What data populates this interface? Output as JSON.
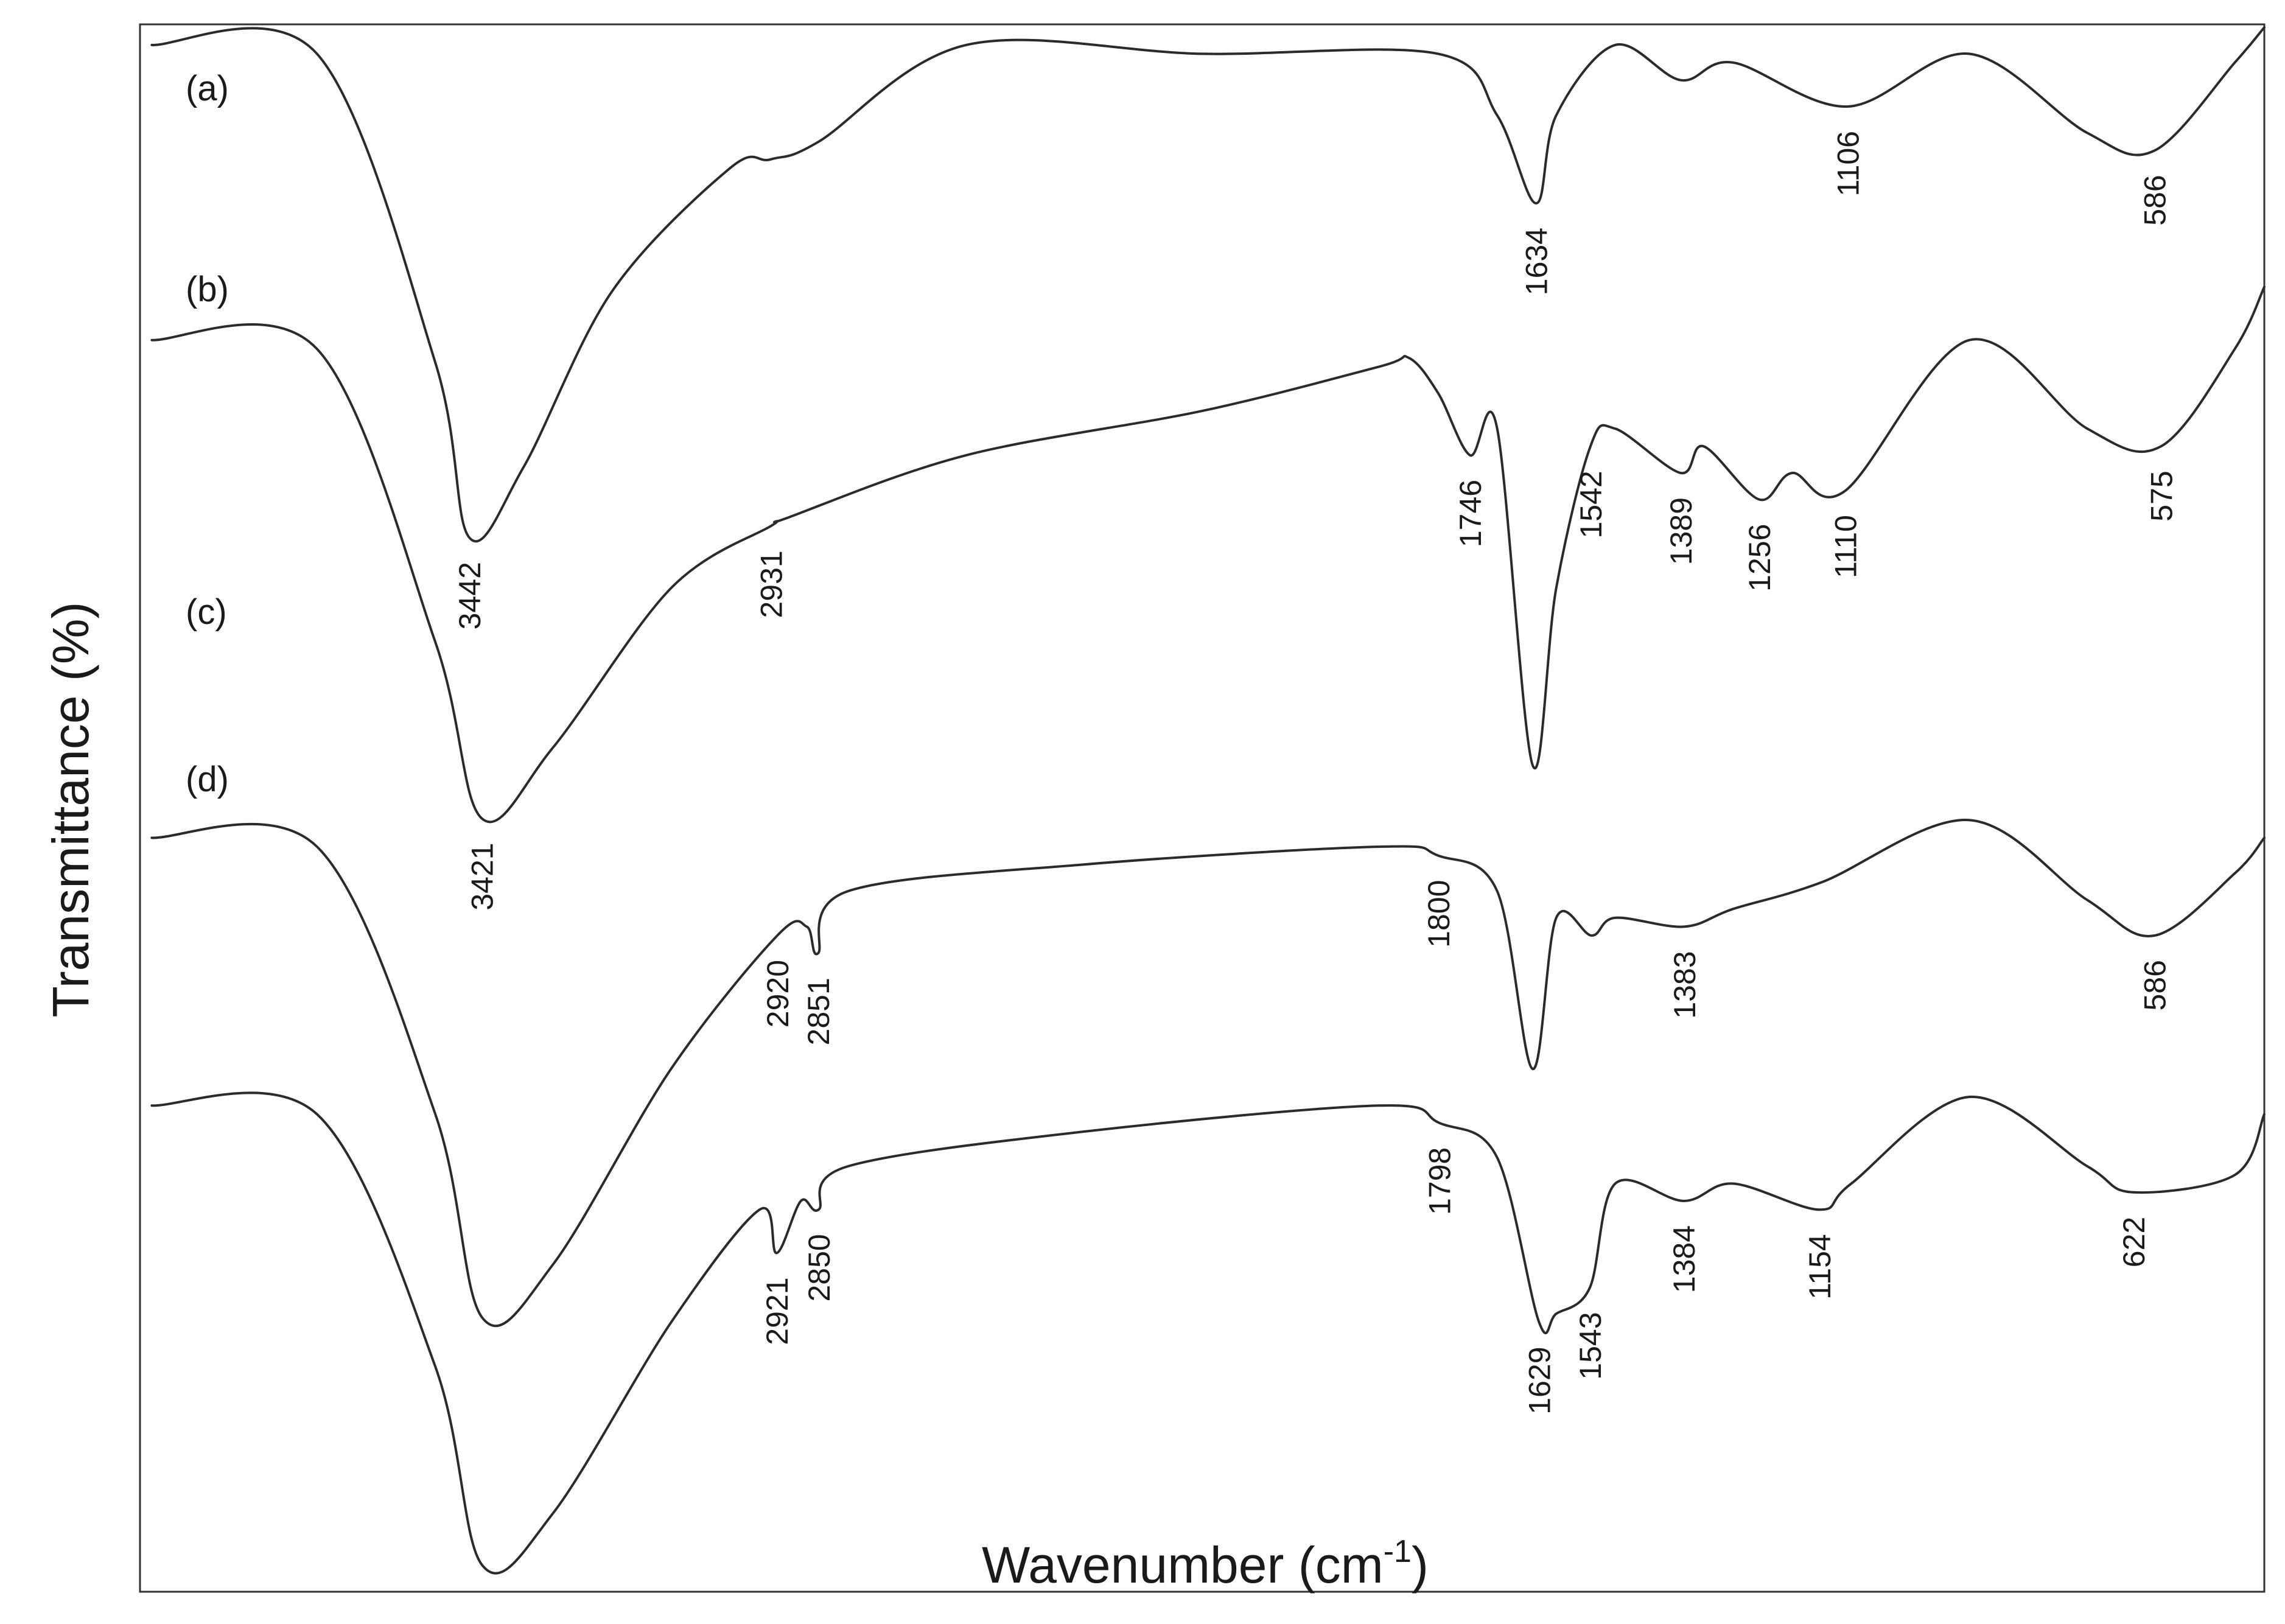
{
  "chart_data": {
    "type": "line",
    "xlabel": "Wavenumber (cm",
    "xlabel_superscript": "-1",
    "xlabel_suffix": ")",
    "ylabel": "Transmittance (%)",
    "x_direction": "descending",
    "xlim": [
      4000,
      400
    ],
    "ylim": [
      0,
      100
    ],
    "grid": false,
    "legend": "none",
    "series": [
      {
        "name": "(a)",
        "points": [
          [
            3980,
            98
          ],
          [
            3700,
            97
          ],
          [
            3500,
            62
          ],
          [
            3442,
            42
          ],
          [
            3350,
            50
          ],
          [
            3200,
            70
          ],
          [
            3000,
            84
          ],
          [
            2931,
            85
          ],
          [
            2850,
            87
          ],
          [
            2600,
            98
          ],
          [
            2200,
            97
          ],
          [
            1800,
            97
          ],
          [
            1700,
            90
          ],
          [
            1634,
            80
          ],
          [
            1600,
            90
          ],
          [
            1500,
            98
          ],
          [
            1389,
            94
          ],
          [
            1300,
            96
          ],
          [
            1106,
            91
          ],
          [
            900,
            97
          ],
          [
            700,
            88
          ],
          [
            586,
            86
          ],
          [
            450,
            96
          ],
          [
            400,
            100
          ]
        ]
      },
      {
        "name": "(b)",
        "points": [
          [
            3980,
            86
          ],
          [
            3700,
            85
          ],
          [
            3500,
            52
          ],
          [
            3421,
            32
          ],
          [
            3300,
            40
          ],
          [
            3100,
            58
          ],
          [
            2931,
            65
          ],
          [
            2900,
            66
          ],
          [
            2600,
            73
          ],
          [
            2200,
            78
          ],
          [
            1900,
            83
          ],
          [
            1850,
            84
          ],
          [
            1800,
            80
          ],
          [
            1746,
            73
          ],
          [
            1700,
            76
          ],
          [
            1640,
            38
          ],
          [
            1600,
            58
          ],
          [
            1542,
            74
          ],
          [
            1500,
            76
          ],
          [
            1389,
            71
          ],
          [
            1350,
            74
          ],
          [
            1256,
            68
          ],
          [
            1200,
            71
          ],
          [
            1110,
            69
          ],
          [
            900,
            86
          ],
          [
            700,
            76
          ],
          [
            575,
            74
          ],
          [
            450,
            85
          ],
          [
            400,
            92
          ]
        ]
      },
      {
        "name": "(c)",
        "points": [
          [
            3980,
            66
          ],
          [
            3700,
            65
          ],
          [
            3500,
            35
          ],
          [
            3420,
            12
          ],
          [
            3300,
            18
          ],
          [
            3100,
            40
          ],
          [
            2920,
            55
          ],
          [
            2870,
            56
          ],
          [
            2851,
            53
          ],
          [
            2800,
            60
          ],
          [
            2400,
            63
          ],
          [
            1900,
            65
          ],
          [
            1800,
            64
          ],
          [
            1700,
            60
          ],
          [
            1640,
            40
          ],
          [
            1600,
            57
          ],
          [
            1540,
            55
          ],
          [
            1500,
            57
          ],
          [
            1383,
            56
          ],
          [
            1300,
            58
          ],
          [
            1150,
            61
          ],
          [
            900,
            68
          ],
          [
            700,
            59
          ],
          [
            586,
            55
          ],
          [
            450,
            62
          ],
          [
            400,
            66
          ]
        ]
      },
      {
        "name": "(d)",
        "points": [
          [
            3980,
            55
          ],
          [
            3700,
            54
          ],
          [
            3500,
            25
          ],
          [
            3420,
            2
          ],
          [
            3300,
            8
          ],
          [
            3100,
            30
          ],
          [
            2950,
            43
          ],
          [
            2921,
            38
          ],
          [
            2880,
            44
          ],
          [
            2850,
            43
          ],
          [
            2800,
            48
          ],
          [
            2400,
            52
          ],
          [
            1900,
            55
          ],
          [
            1798,
            53
          ],
          [
            1700,
            49
          ],
          [
            1629,
            30
          ],
          [
            1600,
            31
          ],
          [
            1543,
            34
          ],
          [
            1500,
            46
          ],
          [
            1384,
            44
          ],
          [
            1300,
            46
          ],
          [
            1154,
            43
          ],
          [
            1100,
            46
          ],
          [
            900,
            56
          ],
          [
            700,
            48
          ],
          [
            622,
            45
          ],
          [
            450,
            47
          ],
          [
            400,
            54
          ]
        ]
      }
    ],
    "annotations": [
      {
        "series": "(a)",
        "label": "3442",
        "x": 3442
      },
      {
        "series": "(a)",
        "label": "1634",
        "x": 1634
      },
      {
        "series": "(a)",
        "label": "1106",
        "x": 1106
      },
      {
        "series": "(a)",
        "label": "586",
        "x": 586
      },
      {
        "series": "(b)",
        "label": "3421",
        "x": 3421
      },
      {
        "series": "(b)",
        "label": "2931",
        "x": 2931
      },
      {
        "series": "(b)",
        "label": "1746",
        "x": 1746
      },
      {
        "series": "(b)",
        "label": "1542",
        "x": 1542
      },
      {
        "series": "(b)",
        "label": "1389",
        "x": 1389
      },
      {
        "series": "(b)",
        "label": "1256",
        "x": 1256
      },
      {
        "series": "(b)",
        "label": "1110",
        "x": 1110
      },
      {
        "series": "(b)",
        "label": "575",
        "x": 575
      },
      {
        "series": "(c)",
        "label": "2920",
        "x": 2920
      },
      {
        "series": "(c)",
        "label": "2851",
        "x": 2851
      },
      {
        "series": "(c)",
        "label": "1800",
        "x": 1800
      },
      {
        "series": "(c)",
        "label": "1383",
        "x": 1383
      },
      {
        "series": "(c)",
        "label": "586",
        "x": 586
      },
      {
        "series": "(d)",
        "label": "2921",
        "x": 2921
      },
      {
        "series": "(d)",
        "label": "2850",
        "x": 2850
      },
      {
        "series": "(d)",
        "label": "1798",
        "x": 1798
      },
      {
        "series": "(d)",
        "label": "1629",
        "x": 1629
      },
      {
        "series": "(d)",
        "label": "1543",
        "x": 1543
      },
      {
        "series": "(d)",
        "label": "1384",
        "x": 1384
      },
      {
        "series": "(d)",
        "label": "1154",
        "x": 1154
      },
      {
        "series": "(d)",
        "label": "622",
        "x": 622
      }
    ]
  }
}
